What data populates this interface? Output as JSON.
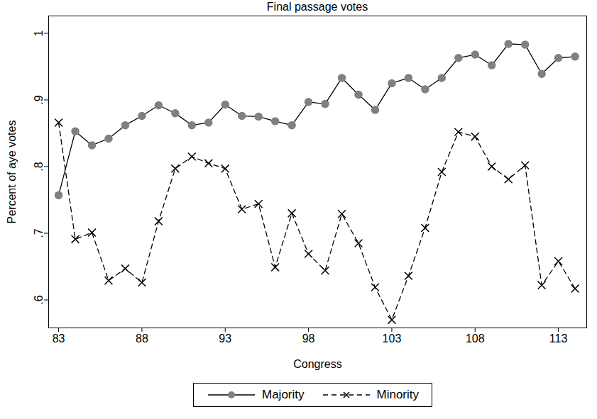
{
  "chart_data": {
    "type": "line",
    "title": "Final passage votes",
    "x_label": "Congress",
    "y_label": "Percent of aye votes",
    "x": [
      83,
      84,
      85,
      86,
      87,
      88,
      89,
      90,
      91,
      92,
      93,
      94,
      95,
      96,
      97,
      98,
      99,
      100,
      101,
      102,
      103,
      104,
      105,
      106,
      107,
      108,
      109,
      110,
      111,
      112,
      113,
      114
    ],
    "series": [
      {
        "name": "Majority",
        "color": "#808080",
        "marker": "circle",
        "line_style": "solid",
        "values": [
          0.757,
          0.853,
          0.832,
          0.842,
          0.862,
          0.876,
          0.892,
          0.88,
          0.862,
          0.866,
          0.893,
          0.876,
          0.875,
          0.868,
          0.862,
          0.897,
          0.894,
          0.933,
          0.908,
          0.885,
          0.925,
          0.933,
          0.916,
          0.933,
          0.963,
          0.968,
          0.952,
          0.984,
          0.983,
          0.939,
          0.963,
          0.965
        ]
      },
      {
        "name": "Minority",
        "color": "#000000",
        "marker": "x",
        "line_style": "dashed",
        "values": [
          0.866,
          0.691,
          0.701,
          0.629,
          0.647,
          0.626,
          0.718,
          0.797,
          0.815,
          0.805,
          0.797,
          0.736,
          0.744,
          0.649,
          0.73,
          0.669,
          0.644,
          0.729,
          0.685,
          0.619,
          0.57,
          0.636,
          0.708,
          0.792,
          0.852,
          0.845,
          0.8,
          0.781,
          0.802,
          0.622,
          0.658,
          0.617
        ]
      }
    ],
    "xlim": [
      82.4,
      114.7
    ],
    "ylim": [
      0.558,
      1.026
    ],
    "xticks": [
      83,
      88,
      93,
      98,
      103,
      108,
      113
    ],
    "yticks": [
      {
        "value": 0.6,
        "label": ".6"
      },
      {
        "value": 0.7,
        "label": ".7"
      },
      {
        "value": 0.8,
        "label": ".8"
      },
      {
        "value": 0.9,
        "label": ".9"
      },
      1
    ],
    "grid": false,
    "legend": "bottom"
  }
}
